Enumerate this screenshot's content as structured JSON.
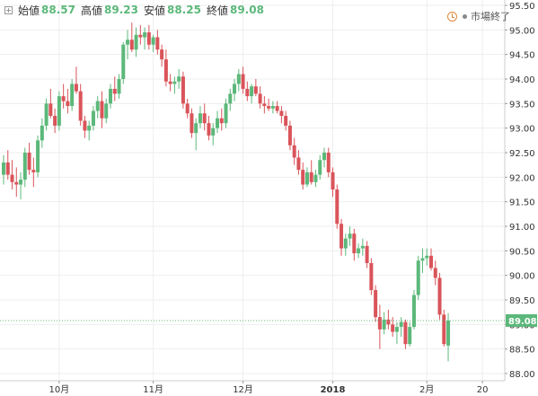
{
  "header": {
    "open_label": "始値",
    "open_value": "88.57",
    "high_label": "高値",
    "high_value": "89.23",
    "low_label": "安値",
    "low_value": "88.25",
    "close_label": "終値",
    "close_value": "89.08",
    "status_text": "市場終了",
    "expand_icon": "expand-icon",
    "status_icon": "clock-icon"
  },
  "colors": {
    "up": "#5cb87a",
    "down": "#d9545a",
    "grid": "#eeeeee",
    "axis_text": "#333333",
    "last_price_bg": "#5cb87a",
    "value_text": "#5cb87a"
  },
  "chart_data": {
    "type": "candlestick",
    "ylim": [
      87.9,
      95.5
    ],
    "y_ticks": [
      "88.00",
      "88.50",
      "89.00",
      "89.50",
      "90.00",
      "90.50",
      "91.00",
      "91.50",
      "92.00",
      "92.50",
      "93.00",
      "93.50",
      "94.00",
      "94.50",
      "95.00",
      "95.50"
    ],
    "x_ticks": [
      {
        "label": "10月",
        "index": 13
      },
      {
        "label": "11月",
        "index": 35
      },
      {
        "label": "12月",
        "index": 56
      },
      {
        "label": "2018",
        "index": 77
      },
      {
        "label": "2月",
        "index": 99
      },
      {
        "label": "20",
        "index": 112
      }
    ],
    "last_price": 89.08,
    "last_price_label": "89.08",
    "candles": [
      [
        92.05,
        92.45,
        91.85,
        92.3
      ],
      [
        92.3,
        92.55,
        91.95,
        92.05
      ],
      [
        92.05,
        92.35,
        91.75,
        91.9
      ],
      [
        91.9,
        92.2,
        91.6,
        91.85
      ],
      [
        91.85,
        92.1,
        91.55,
        91.95
      ],
      [
        91.95,
        92.6,
        91.8,
        92.5
      ],
      [
        92.5,
        92.7,
        92.05,
        92.15
      ],
      [
        92.15,
        92.4,
        91.8,
        92.1
      ],
      [
        92.1,
        92.85,
        92.0,
        92.75
      ],
      [
        92.75,
        93.2,
        92.6,
        93.05
      ],
      [
        93.05,
        93.6,
        92.95,
        93.5
      ],
      [
        93.5,
        93.8,
        93.2,
        93.25
      ],
      [
        93.25,
        93.4,
        92.9,
        93.05
      ],
      [
        93.05,
        93.75,
        92.95,
        93.65
      ],
      [
        93.65,
        93.9,
        93.4,
        93.55
      ],
      [
        93.55,
        93.8,
        93.3,
        93.45
      ],
      [
        93.45,
        94.0,
        93.35,
        93.9
      ],
      [
        93.9,
        94.25,
        93.7,
        93.75
      ],
      [
        93.75,
        93.9,
        93.05,
        93.15
      ],
      [
        93.15,
        93.25,
        92.8,
        92.95
      ],
      [
        92.95,
        93.15,
        92.75,
        93.05
      ],
      [
        93.05,
        93.45,
        92.95,
        93.35
      ],
      [
        93.35,
        93.65,
        93.2,
        93.55
      ],
      [
        93.55,
        93.75,
        93.0,
        93.2
      ],
      [
        93.2,
        93.6,
        93.1,
        93.5
      ],
      [
        93.5,
        93.9,
        93.4,
        93.8
      ],
      [
        93.8,
        94.05,
        93.55,
        93.7
      ],
      [
        93.7,
        94.1,
        93.6,
        94.0
      ],
      [
        94.0,
        94.75,
        93.9,
        94.7
      ],
      [
        94.7,
        95.0,
        94.4,
        94.8
      ],
      [
        94.8,
        95.15,
        94.55,
        94.6
      ],
      [
        94.6,
        95.05,
        94.45,
        94.9
      ],
      [
        94.9,
        95.1,
        94.7,
        94.85
      ],
      [
        94.85,
        95.05,
        94.6,
        94.95
      ],
      [
        94.95,
        95.1,
        94.6,
        94.7
      ],
      [
        94.7,
        94.9,
        94.55,
        94.85
      ],
      [
        94.85,
        95.0,
        94.5,
        94.6
      ],
      [
        94.6,
        94.7,
        94.25,
        94.4
      ],
      [
        94.4,
        94.6,
        93.85,
        93.95
      ],
      [
        93.95,
        94.1,
        93.75,
        93.9
      ],
      [
        93.9,
        94.05,
        93.7,
        93.95
      ],
      [
        93.95,
        94.2,
        93.8,
        94.05
      ],
      [
        94.05,
        94.15,
        93.4,
        93.5
      ],
      [
        93.5,
        93.6,
        93.2,
        93.3
      ],
      [
        93.3,
        93.4,
        92.8,
        92.9
      ],
      [
        92.9,
        93.2,
        92.55,
        93.1
      ],
      [
        93.1,
        93.45,
        93.0,
        93.3
      ],
      [
        93.3,
        93.5,
        92.95,
        93.1
      ],
      [
        93.1,
        93.25,
        92.75,
        92.85
      ],
      [
        92.85,
        93.1,
        92.65,
        93.0
      ],
      [
        93.0,
        93.35,
        92.9,
        93.2
      ],
      [
        93.2,
        93.4,
        92.95,
        93.1
      ],
      [
        93.1,
        93.6,
        93.0,
        93.5
      ],
      [
        93.5,
        93.8,
        93.35,
        93.7
      ],
      [
        93.7,
        94.0,
        93.55,
        93.9
      ],
      [
        93.9,
        94.2,
        93.75,
        94.1
      ],
      [
        94.1,
        94.25,
        93.7,
        93.8
      ],
      [
        93.8,
        93.95,
        93.55,
        93.65
      ],
      [
        93.65,
        93.9,
        93.5,
        93.85
      ],
      [
        93.85,
        94.0,
        93.65,
        93.7
      ],
      [
        93.7,
        93.85,
        93.4,
        93.5
      ],
      [
        93.5,
        93.65,
        93.3,
        93.45
      ],
      [
        93.45,
        93.6,
        93.35,
        93.4
      ],
      [
        93.4,
        93.55,
        93.3,
        93.45
      ],
      [
        93.45,
        93.55,
        93.3,
        93.35
      ],
      [
        93.35,
        93.45,
        93.1,
        93.25
      ],
      [
        93.25,
        93.35,
        92.95,
        93.05
      ],
      [
        93.05,
        93.15,
        92.55,
        92.65
      ],
      [
        92.65,
        92.8,
        92.25,
        92.4
      ],
      [
        92.4,
        92.55,
        92.05,
        92.15
      ],
      [
        92.15,
        92.3,
        91.75,
        91.85
      ],
      [
        91.85,
        92.2,
        91.8,
        92.1
      ],
      [
        92.1,
        92.35,
        91.85,
        91.9
      ],
      [
        91.9,
        92.15,
        91.8,
        92.05
      ],
      [
        92.05,
        92.45,
        91.95,
        92.35
      ],
      [
        92.35,
        92.6,
        92.2,
        92.5
      ],
      [
        92.5,
        92.6,
        92.0,
        92.1
      ],
      [
        92.1,
        92.2,
        91.6,
        91.75
      ],
      [
        91.75,
        91.85,
        90.95,
        91.05
      ],
      [
        91.05,
        91.15,
        90.4,
        90.55
      ],
      [
        90.55,
        90.85,
        90.4,
        90.75
      ],
      [
        90.75,
        91.0,
        90.6,
        90.85
      ],
      [
        90.85,
        90.95,
        90.3,
        90.45
      ],
      [
        90.45,
        90.65,
        90.35,
        90.55
      ],
      [
        90.55,
        90.75,
        90.4,
        90.6
      ],
      [
        90.6,
        90.7,
        90.15,
        90.25
      ],
      [
        90.25,
        90.35,
        89.6,
        89.7
      ],
      [
        89.7,
        89.8,
        89.05,
        89.15
      ],
      [
        89.15,
        89.4,
        88.5,
        88.9
      ],
      [
        88.9,
        89.25,
        88.8,
        89.1
      ],
      [
        89.1,
        89.3,
        88.9,
        89.0
      ],
      [
        89.0,
        89.15,
        88.75,
        88.85
      ],
      [
        88.85,
        89.05,
        88.6,
        88.95
      ],
      [
        88.95,
        89.15,
        88.75,
        89.05
      ],
      [
        89.05,
        89.1,
        88.5,
        88.6
      ],
      [
        88.6,
        89.05,
        88.55,
        88.95
      ],
      [
        88.95,
        89.7,
        88.9,
        89.6
      ],
      [
        89.6,
        90.4,
        89.5,
        90.3
      ],
      [
        90.3,
        90.55,
        90.05,
        90.35
      ],
      [
        90.35,
        90.55,
        90.2,
        90.4
      ],
      [
        90.4,
        90.55,
        90.1,
        90.15
      ],
      [
        90.15,
        90.3,
        89.8,
        89.95
      ],
      [
        89.95,
        90.05,
        89.1,
        89.2
      ],
      [
        89.2,
        89.3,
        88.55,
        88.6
      ],
      [
        88.57,
        89.23,
        88.25,
        89.08
      ]
    ]
  }
}
